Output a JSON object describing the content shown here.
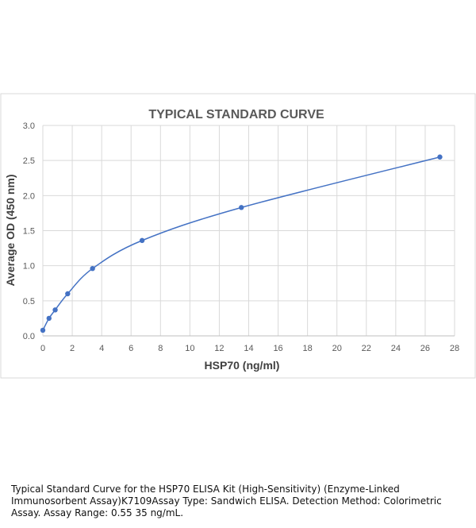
{
  "chart_data": {
    "type": "scatter",
    "title": "TYPICAL STANDARD CURVE",
    "xlabel": "HSP70 (ng/ml)",
    "ylabel": "Average OD (450 nm)",
    "xlim": [
      0,
      28
    ],
    "ylim": [
      0,
      3.0
    ],
    "x_ticks": [
      "0",
      "2",
      "4",
      "6",
      "8",
      "10",
      "12",
      "14",
      "16",
      "18",
      "20",
      "22",
      "24",
      "26",
      "28"
    ],
    "y_ticks": [
      "0.0",
      "0.5",
      "1.0",
      "1.5",
      "2.0",
      "2.5",
      "3.0"
    ],
    "grid": true,
    "legend": "none",
    "smooth_line": true,
    "series": [
      {
        "x": [
          0,
          0.42,
          0.84,
          1.69,
          3.38,
          6.75,
          13.5,
          27
        ],
        "y": [
          0.08,
          0.25,
          0.37,
          0.6,
          0.96,
          1.36,
          1.83,
          2.55
        ],
        "color": "#4472c4"
      }
    ]
  },
  "caption": "Typical Standard Curve for the HSP70 ELISA Kit (High-Sensitivity) (Enzyme-Linked Immunosorbent Assay)K7109Assay Type: Sandwich ELISA. Detection Method: Colorimetric Assay. Assay Range: 0.55 35 ng/mL."
}
